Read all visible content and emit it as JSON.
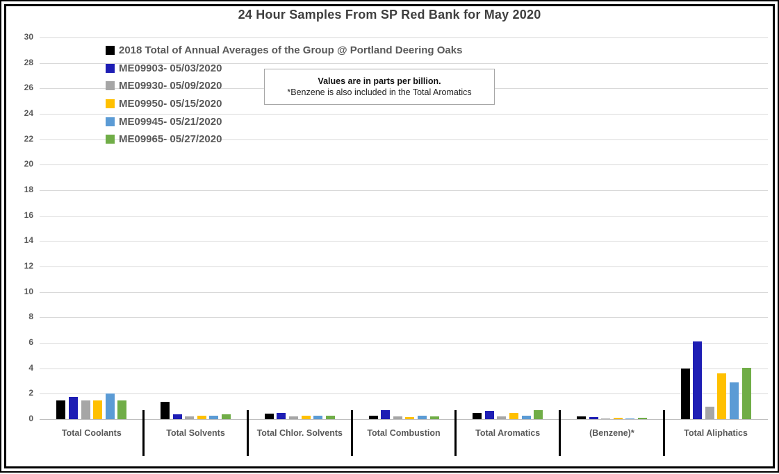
{
  "title": "24 Hour Samples From SP Red Bank for May 2020",
  "note": {
    "line1": "Values are in parts per billion.",
    "line2": "*Benzene is also included in the Total Aromatics"
  },
  "colors": {
    "grid": "#d9d9d9",
    "axis": "#bfbfbf",
    "text": "#595959",
    "divider": "#000000"
  },
  "chart_data": {
    "type": "bar",
    "title": "24 Hour Samples From SP Red Bank for May 2020",
    "unit": "parts per billion",
    "xlabel": "",
    "ylabel": "",
    "ylim": [
      0,
      30
    ],
    "ytick_step": 2,
    "grid": true,
    "legend_position": "top-left",
    "categories": [
      "Total Coolants",
      "Total Solvents",
      "Total Chlor. Solvents",
      "Total Combustion",
      "Total Aromatics",
      "(Benzene)*",
      "Total Aliphatics"
    ],
    "series": [
      {
        "name": "2018 Total of Annual Averages of the Group @ Portland Deering Oaks",
        "color": "#000000",
        "values": [
          1.45,
          1.35,
          0.45,
          0.3,
          0.5,
          0.2,
          4.0
        ]
      },
      {
        "name": "ME09903- 05/03/2020",
        "color": "#1e1eb4",
        "values": [
          1.75,
          0.4,
          0.5,
          0.7,
          0.65,
          0.15,
          6.1
        ]
      },
      {
        "name": "ME09930- 05/09/2020",
        "color": "#a6a6a6",
        "values": [
          1.45,
          0.2,
          0.2,
          0.2,
          0.2,
          0.07,
          1.0
        ]
      },
      {
        "name": "ME09950- 05/15/2020",
        "color": "#ffc000",
        "values": [
          1.5,
          0.3,
          0.3,
          0.15,
          0.5,
          0.12,
          3.6
        ]
      },
      {
        "name": "ME09945- 05/21/2020",
        "color": "#5b9bd5",
        "values": [
          2.0,
          0.25,
          0.3,
          0.25,
          0.3,
          0.05,
          2.9
        ]
      },
      {
        "name": "ME09965- 05/27/2020",
        "color": "#70ad47",
        "values": [
          1.45,
          0.4,
          0.25,
          0.2,
          0.7,
          0.1,
          4.05
        ]
      }
    ]
  }
}
